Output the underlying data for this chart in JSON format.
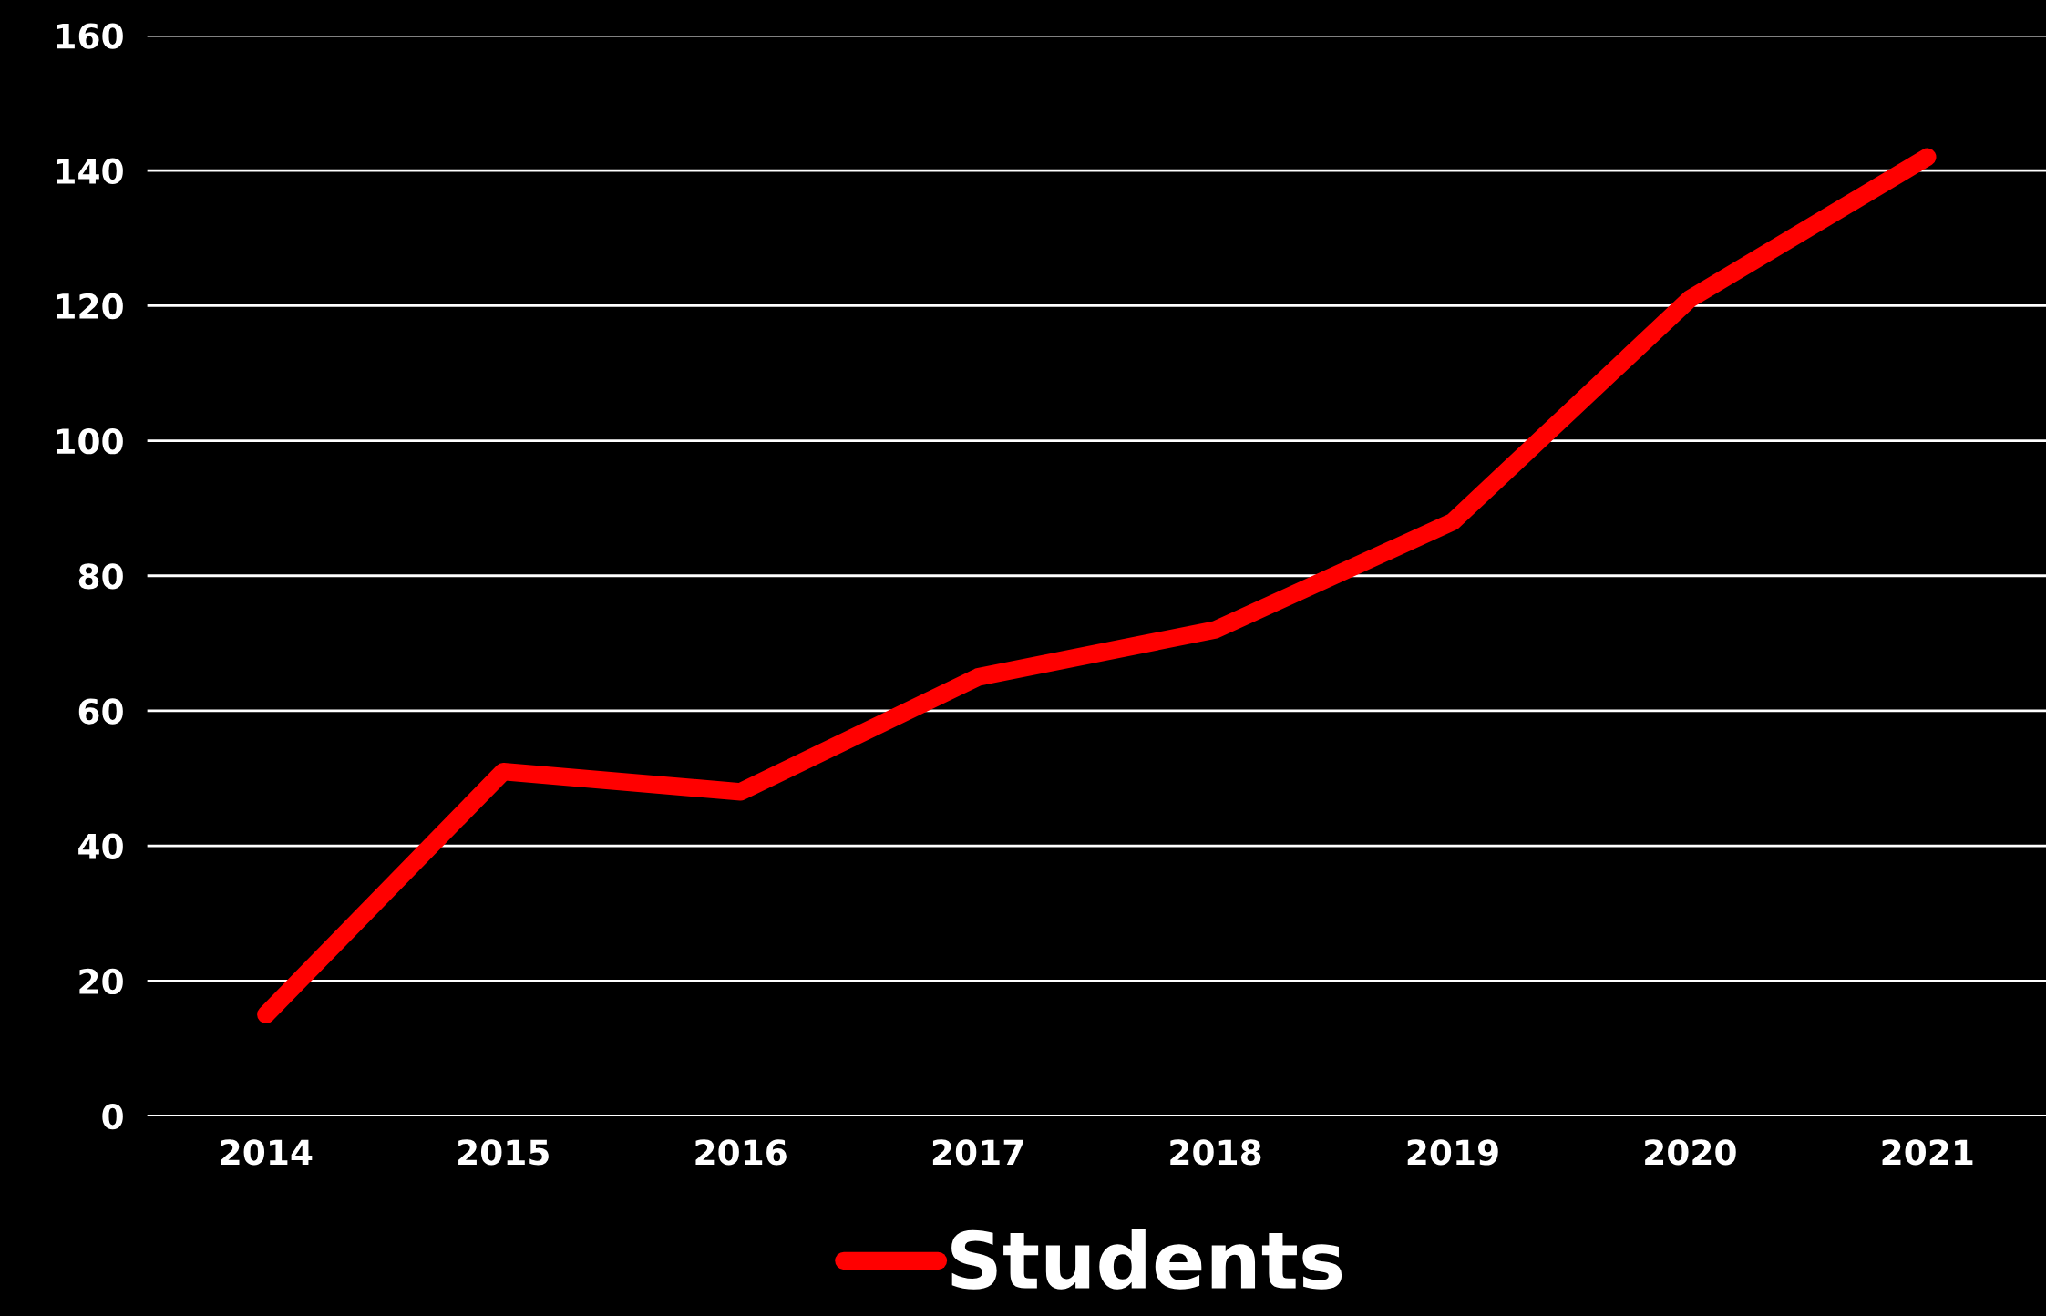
{
  "chart_data": {
    "type": "line",
    "categories": [
      "2014",
      "2015",
      "2016",
      "2017",
      "2018",
      "2019",
      "2020",
      "2021"
    ],
    "series": [
      {
        "name": "Students",
        "color": "#ff0000",
        "values": [
          15,
          51,
          48,
          65,
          72,
          88,
          121,
          142
        ]
      }
    ],
    "ylim": [
      0,
      160
    ],
    "yticks": [
      0,
      20,
      40,
      60,
      80,
      100,
      120,
      140,
      160
    ],
    "grid": "y",
    "legend": "bottom",
    "line_style": "solid"
  }
}
